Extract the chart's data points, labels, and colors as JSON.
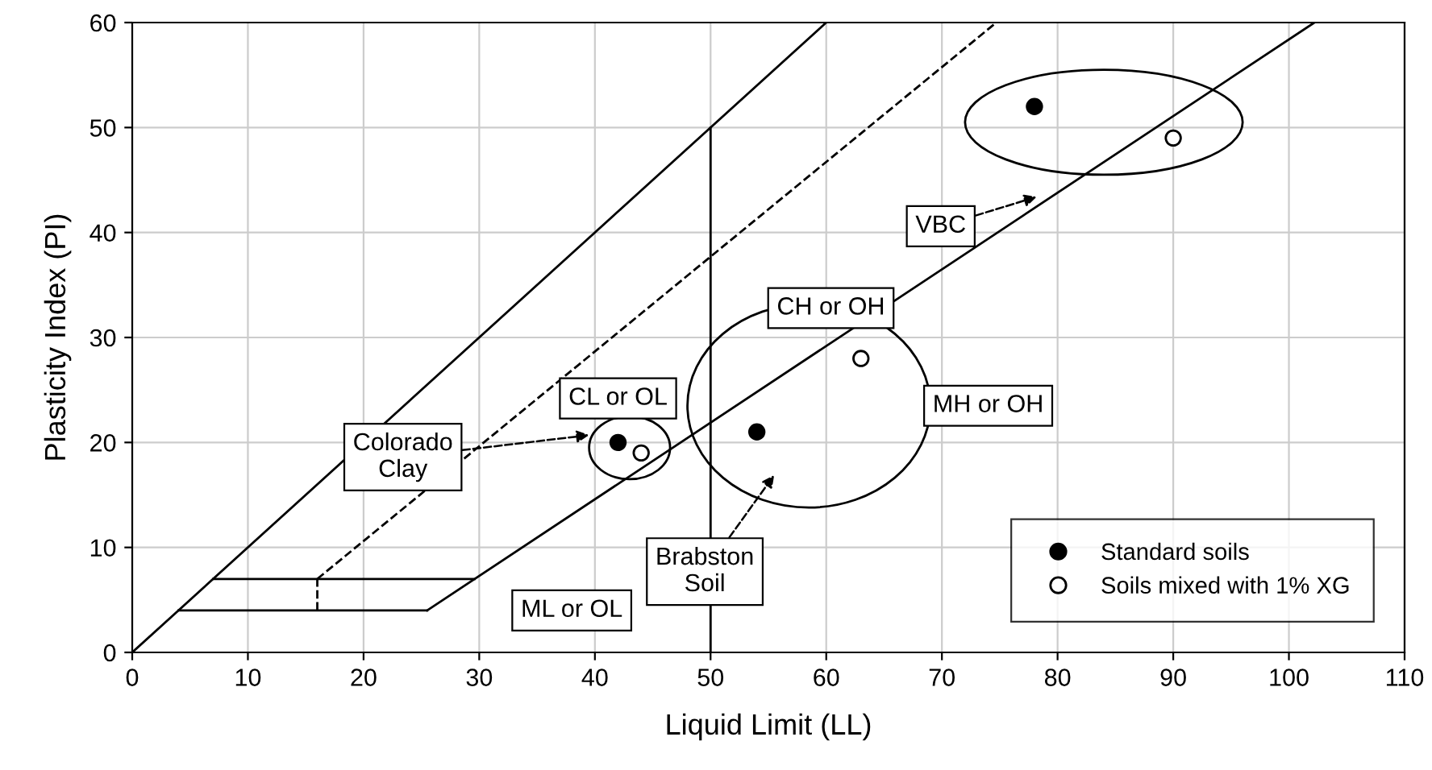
{
  "chart_data": {
    "type": "scatter",
    "xlabel": "Liquid Limit (LL)",
    "ylabel": "Plasticity Index (PI)",
    "xlim": [
      0,
      110
    ],
    "ylim": [
      0,
      60
    ],
    "xticks": [
      0,
      10,
      20,
      30,
      40,
      50,
      60,
      70,
      80,
      90,
      100,
      110
    ],
    "yticks": [
      0,
      10,
      20,
      30,
      40,
      50,
      60
    ],
    "grid": true,
    "legend": "bottom right",
    "marker": "circle",
    "series": [
      {
        "name": "Standard soils",
        "color": "#000000",
        "x": [
          42,
          54,
          78
        ],
        "values": [
          20,
          21,
          52
        ]
      },
      {
        "name": "Soils mixed with 1% XG",
        "color": "#ffffff",
        "x": [
          44,
          63,
          90
        ],
        "values": [
          19,
          28,
          49
        ]
      },
      {
        "type": "line",
        "color": "#000000",
        "line_style": "solid",
        "marker": "none",
        "x": [
          0,
          60
        ],
        "values": [
          0,
          60
        ]
      },
      {
        "type": "line",
        "color": "#000000",
        "line_style": "solid",
        "marker": "none",
        "x": [
          25.5,
          102.2
        ],
        "values": [
          4,
          60
        ]
      },
      {
        "type": "line",
        "color": "#000000",
        "line_style": "dashed",
        "marker": "none",
        "x": [
          16,
          74.7
        ],
        "values": [
          7,
          60
        ]
      },
      {
        "type": "line",
        "color": "#000000",
        "line_style": "dashed",
        "marker": "none",
        "x": [
          16,
          16
        ],
        "values": [
          4,
          7
        ]
      },
      {
        "type": "line",
        "color": "#000000",
        "line_style": "solid",
        "marker": "none",
        "x": [
          50,
          50
        ],
        "values": [
          0,
          50
        ]
      },
      {
        "type": "line",
        "color": "#000000",
        "line_style": "solid",
        "marker": "none",
        "x": [
          4,
          25.5
        ],
        "values": [
          4,
          4
        ]
      },
      {
        "type": "line",
        "color": "#000000",
        "line_style": "solid",
        "marker": "none",
        "x": [
          7,
          29.6
        ],
        "values": [
          7,
          7
        ]
      }
    ],
    "annotations": [
      "CL or OL",
      "CH or OH",
      "MH or OH",
      "ML or OL",
      "Colorado\nClay",
      "Brabston\nSoil",
      "VBC"
    ]
  }
}
